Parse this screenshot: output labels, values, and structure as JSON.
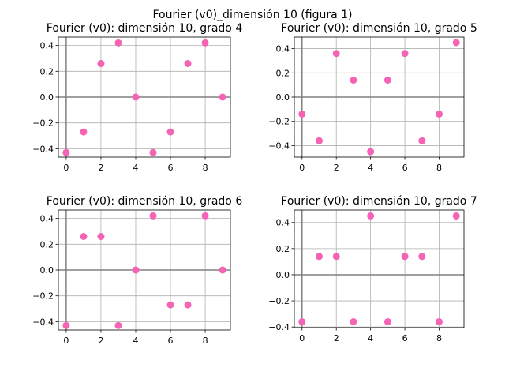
{
  "figure": {
    "title": "Fourier (v0)_dimensión 10 (figura 1)"
  },
  "style": {
    "marker_color": "#f564b4",
    "grid_color": "#b0b0b0",
    "axis_line_color": "#808080"
  },
  "chart_data": [
    {
      "type": "scatter",
      "title": "Fourier (v0): dimensión 10, grado 4",
      "x": [
        0,
        1,
        2,
        3,
        4,
        5,
        6,
        7,
        8,
        9
      ],
      "y": [
        -0.43,
        -0.27,
        0.26,
        0.42,
        0.0,
        -0.43,
        -0.27,
        0.26,
        0.42,
        0.0
      ],
      "xlim": [
        -0.45,
        9.45
      ],
      "ylim": [
        -0.465,
        0.465
      ],
      "xticks": [
        0,
        2,
        4,
        6,
        8
      ],
      "yticks": [
        -0.4,
        -0.2,
        0.0,
        0.2,
        0.4
      ],
      "xtick_labels": [
        "0",
        "2",
        "4",
        "6",
        "8"
      ],
      "ytick_labels": [
        "−0.4",
        "−0.2",
        "0.0",
        "0.2",
        "0.4"
      ],
      "grid": true
    },
    {
      "type": "scatter",
      "title": "Fourier (v0): dimensión 10, grado 5",
      "x": [
        0,
        1,
        2,
        3,
        4,
        5,
        6,
        7,
        8,
        9
      ],
      "y": [
        -0.14,
        -0.36,
        0.36,
        0.14,
        -0.45,
        0.14,
        0.36,
        -0.36,
        -0.14,
        0.45
      ],
      "xlim": [
        -0.45,
        9.45
      ],
      "ylim": [
        -0.495,
        0.495
      ],
      "xticks": [
        0,
        2,
        4,
        6,
        8
      ],
      "yticks": [
        -0.4,
        -0.2,
        0.0,
        0.2,
        0.4
      ],
      "xtick_labels": [
        "0",
        "2",
        "4",
        "6",
        "8"
      ],
      "ytick_labels": [
        "−0.4",
        "−0.2",
        "0.0",
        "0.2",
        "0.4"
      ],
      "grid": true
    },
    {
      "type": "scatter",
      "title": "Fourier (v0): dimensión 10, grado 6",
      "x": [
        0,
        1,
        2,
        3,
        4,
        5,
        6,
        7,
        8,
        9
      ],
      "y": [
        -0.43,
        0.26,
        0.26,
        -0.43,
        0.0,
        0.42,
        -0.27,
        -0.27,
        0.42,
        0.0
      ],
      "xlim": [
        -0.45,
        9.45
      ],
      "ylim": [
        -0.465,
        0.465
      ],
      "xticks": [
        0,
        2,
        4,
        6,
        8
      ],
      "yticks": [
        -0.4,
        -0.2,
        0.0,
        0.2,
        0.4
      ],
      "xtick_labels": [
        "0",
        "2",
        "4",
        "6",
        "8"
      ],
      "ytick_labels": [
        "−0.4",
        "−0.2",
        "0.0",
        "0.2",
        "0.4"
      ],
      "grid": true
    },
    {
      "type": "scatter",
      "title": "Fourier (v0): dimensión 10, grado 7",
      "x": [
        0,
        1,
        2,
        3,
        4,
        5,
        6,
        7,
        8,
        9
      ],
      "y": [
        -0.36,
        0.14,
        0.14,
        -0.36,
        0.45,
        -0.36,
        0.14,
        0.14,
        -0.36,
        0.45
      ],
      "xlim": [
        -0.45,
        9.45
      ],
      "ylim": [
        -0.405,
        0.495
      ],
      "xticks": [
        0,
        2,
        4,
        6,
        8
      ],
      "yticks": [
        -0.4,
        -0.2,
        0.0,
        0.2,
        0.4
      ],
      "xtick_labels": [
        "0",
        "2",
        "4",
        "6",
        "8"
      ],
      "ytick_labels": [
        "−0.4",
        "−0.2",
        "0.0",
        "0.2",
        "0.4"
      ],
      "grid": true
    }
  ]
}
